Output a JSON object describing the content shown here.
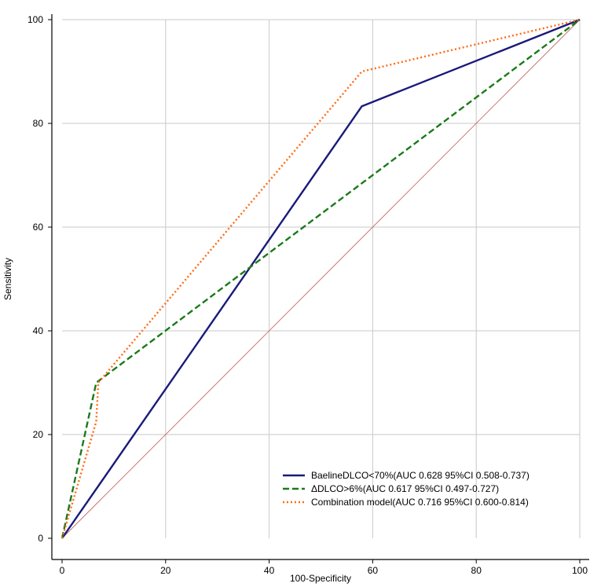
{
  "chart_data": {
    "type": "line",
    "title": "",
    "xlabel": "100-Specificity",
    "ylabel": "Sensitivity",
    "xlim": [
      0,
      100
    ],
    "ylim": [
      0,
      100
    ],
    "xticks": [
      0,
      20,
      40,
      60,
      80,
      100
    ],
    "yticks": [
      0,
      20,
      40,
      60,
      80,
      100
    ],
    "grid": true,
    "legend_position": "bottom-right",
    "series": [
      {
        "name": "BaelineDLCO<70%(AUC 0.628 95%CI 0.508-0.737)",
        "color": "#1a1a7a",
        "dash": "solid",
        "points": [
          [
            0,
            0
          ],
          [
            57.9,
            83.3
          ],
          [
            100,
            100
          ]
        ]
      },
      {
        "name": "ΔDLCO>6%(AUC 0.617 95%CI 0.497-0.727)",
        "color": "#1a7a1a",
        "dash": "dashed",
        "points": [
          [
            0,
            0
          ],
          [
            6.6,
            30
          ],
          [
            100,
            100
          ]
        ]
      },
      {
        "name": "Combination model(AUC 0.716 95%CI 0.600-0.814)",
        "color": "#ff6a13",
        "dash": "dotted",
        "points": [
          [
            0,
            0
          ],
          [
            6.6,
            22.5
          ],
          [
            7.0,
            30
          ],
          [
            57.9,
            90
          ],
          [
            100,
            100
          ]
        ]
      }
    ],
    "reference_line": {
      "color": "#c46a6a",
      "points": [
        [
          0,
          0
        ],
        [
          100,
          100
        ]
      ]
    },
    "axis_color": "#000000",
    "grid_color": "#c8c8c8"
  }
}
